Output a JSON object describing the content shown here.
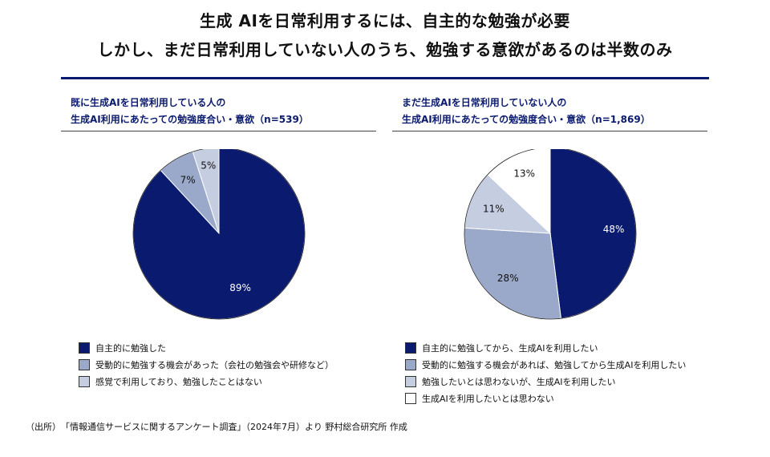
{
  "header": {
    "title_line1": "生成 AIを日常利用するには、自主的な勉強が必要",
    "title_line2": "しかし、まだ日常利用していない人のうち、勉強する意欲があるのは半数のみ"
  },
  "colors": {
    "navy": "#0a1a6e",
    "mid_blue": "#9aa9c9",
    "light_blue": "#c5cde0",
    "white": "#ffffff"
  },
  "chart_data": [
    {
      "type": "pie",
      "title_line1": "既に生成AIを日常利用している人の",
      "title_line2": "生成AI利用にあたっての勉強度合い・意欲（n=539）",
      "categories": [
        "自主的に勉強した",
        "受動的に勉強する機会があった（会社の勉強会や研修など）",
        "感覚で利用しており、勉強したことはない"
      ],
      "values": [
        89,
        7,
        5
      ],
      "labels": [
        "89%",
        "7%",
        "5%"
      ],
      "colors": [
        "#0a1a6e",
        "#9aa9c9",
        "#c5cde0"
      ],
      "label_colors": [
        "#ffffff",
        "#111111",
        "#111111"
      ],
      "start_angle_deg": 0,
      "direction": "clockwise"
    },
    {
      "type": "pie",
      "title_line1": "まだ生成AIを日常利用していない人の",
      "title_line2": "生成AI利用にあたっての勉強度合い・意欲（n=1,869）",
      "categories": [
        "自主的に勉強してから、生成AIを利用したい",
        "受動的に勉強する機会があれば、勉強してから生成AIを利用したい",
        "勉強したいとは思わないが、生成AIを利用したい",
        "生成AIを利用したいとは思わない"
      ],
      "values": [
        48,
        28,
        11,
        13
      ],
      "labels": [
        "48%",
        "28%",
        "11%",
        "13%"
      ],
      "colors": [
        "#0a1a6e",
        "#9aa9c9",
        "#c5cde0",
        "#ffffff"
      ],
      "label_colors": [
        "#ffffff",
        "#111111",
        "#111111",
        "#111111"
      ],
      "start_angle_deg": 0,
      "direction": "clockwise"
    }
  ],
  "footer": {
    "source": "（出所）　「情報通信サービスに関するアンケート調査」（2024年7月）より 野村総合研究所 作成"
  }
}
